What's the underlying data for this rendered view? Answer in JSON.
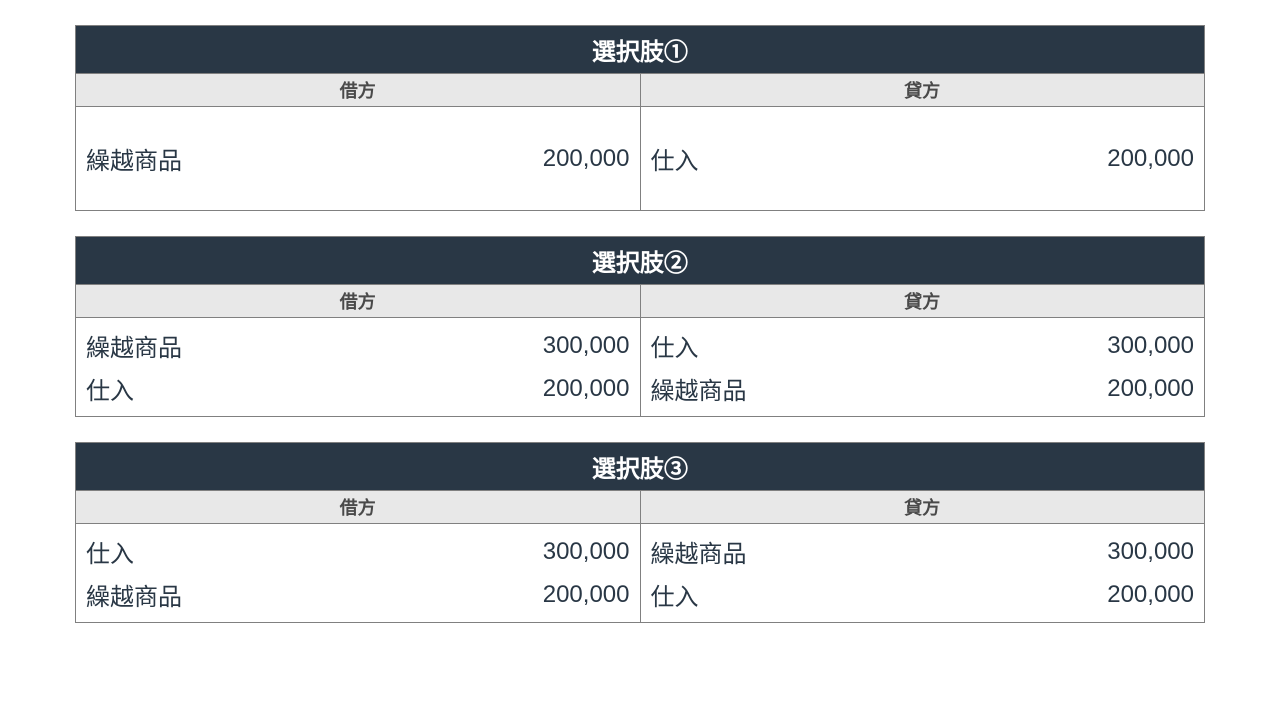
{
  "options": [
    {
      "title": "選択肢①",
      "debit_header": "借方",
      "credit_header": "貸方",
      "tall": true,
      "rows": [
        {
          "debit_account": "繰越商品",
          "debit_amount": "200,000",
          "credit_account": "仕入",
          "credit_amount": "200,000"
        }
      ]
    },
    {
      "title": "選択肢②",
      "debit_header": "借方",
      "credit_header": "貸方",
      "tall": false,
      "rows": [
        {
          "debit_account": "繰越商品",
          "debit_amount": "300,000",
          "credit_account": "仕入",
          "credit_amount": "300,000"
        },
        {
          "debit_account": "仕入",
          "debit_amount": "200,000",
          "credit_account": "繰越商品",
          "credit_amount": "200,000"
        }
      ]
    },
    {
      "title": "選択肢③",
      "debit_header": "借方",
      "credit_header": "貸方",
      "tall": false,
      "rows": [
        {
          "debit_account": "仕入",
          "debit_amount": "300,000",
          "credit_account": "繰越商品",
          "credit_amount": "300,000"
        },
        {
          "debit_account": "繰越商品",
          "debit_amount": "200,000",
          "credit_account": "仕入",
          "credit_amount": "200,000"
        }
      ]
    }
  ],
  "colors": {
    "header_bg": "#293745",
    "header_text": "#ffffff",
    "subheader_bg": "#e8e8e8",
    "subheader_text": "#4a4a4a",
    "border": "#808080",
    "text": "#293745",
    "page_bg": "#ffffff"
  },
  "typography": {
    "header_fontsize": 24,
    "subheader_fontsize": 18,
    "data_fontsize": 24
  }
}
